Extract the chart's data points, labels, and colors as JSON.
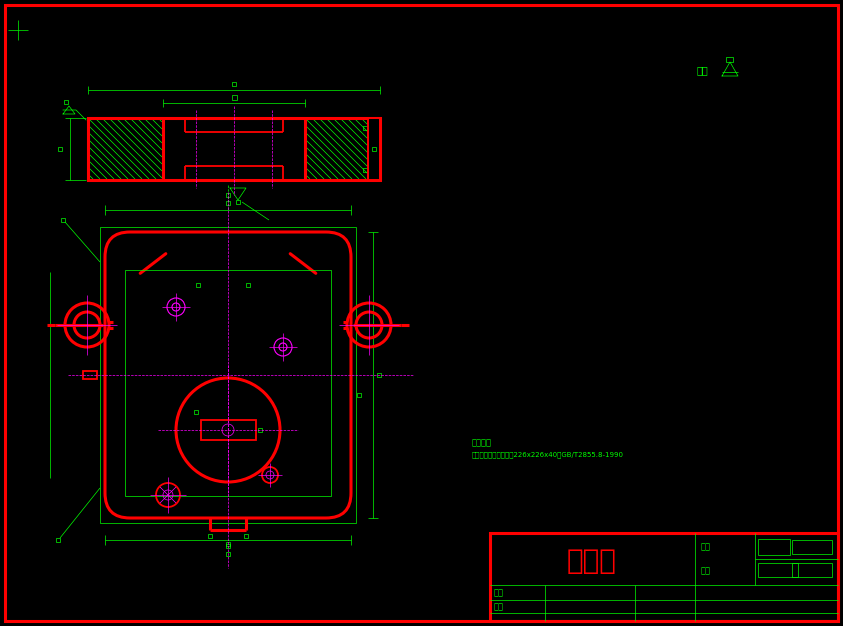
{
  "bg_color": "#000000",
  "green": "#00ff00",
  "red": "#ff0000",
  "magenta": "#ff00ff",
  "title_text": "上模座",
  "tech_req_line1": "技术要求",
  "tech_req_line2": "适用标准压制导柱模架226x226x40，GB/T2855.8-1990",
  "label_biaoji": "出料",
  "label_cailiao": "材料",
  "label_zhitu": "制图",
  "label_shenhe": "审核",
  "roughness_text": "其余"
}
